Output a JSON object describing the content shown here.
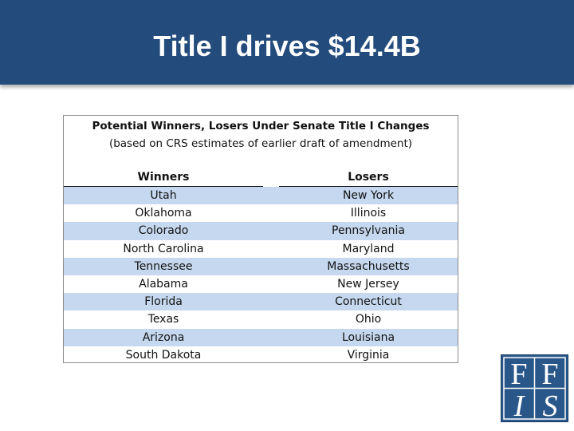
{
  "slide": {
    "title": "Title I drives $14.4B"
  },
  "table": {
    "title": "Potential Winners,  Losers Under Senate Title I Changes",
    "subtitle": "(based on CRS estimates of earlier draft of amendment)",
    "headers": {
      "winners": "Winners",
      "losers": "Losers"
    },
    "rows": [
      {
        "winner": "Utah",
        "loser": "New York"
      },
      {
        "winner": "Oklahoma",
        "loser": "Illinois"
      },
      {
        "winner": "Colorado",
        "loser": "Pennsylvania"
      },
      {
        "winner": "North Carolina",
        "loser": "Maryland"
      },
      {
        "winner": "Tennessee",
        "loser": "Massachusetts"
      },
      {
        "winner": "Alabama",
        "loser": "New Jersey"
      },
      {
        "winner": "Florida",
        "loser": "Connecticut"
      },
      {
        "winner": "Texas",
        "loser": "Ohio"
      },
      {
        "winner": "Arizona",
        "loser": "Louisiana"
      },
      {
        "winner": "South Dakota",
        "loser": "Virginia"
      }
    ],
    "band_color": "#c6d8ef"
  },
  "logo": {
    "text": "FFIS",
    "color": "#2a578a"
  },
  "colors": {
    "header": "#234b7c"
  }
}
